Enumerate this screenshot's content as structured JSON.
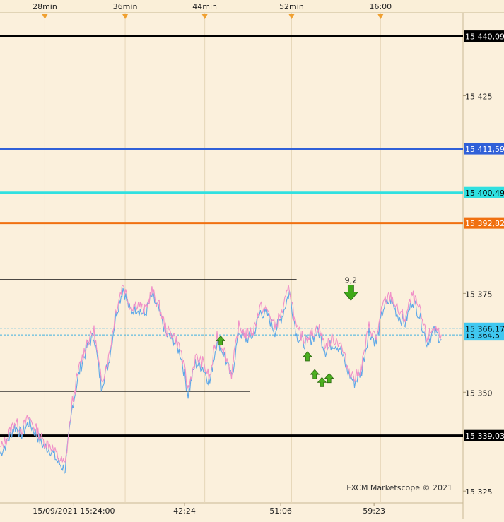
{
  "chart_data": {
    "type": "line",
    "title": "",
    "xlabel": "",
    "ylabel": "",
    "ylim": [
      15322,
      15446
    ],
    "top_time_ticks": [
      "28min",
      "36min",
      "44min",
      "52min",
      "16:00"
    ],
    "bottom_time_ticks": [
      "15/09/2021 15:24:00",
      "42:24",
      "51:06",
      "59:23"
    ],
    "y_ticks": [
      15325,
      15350,
      15375,
      15425
    ],
    "y_tick_labels": [
      "15 325",
      "15 350",
      "15 375",
      "15 425"
    ],
    "levels": [
      {
        "value": 15440.09,
        "label": "15 440,09",
        "color": "#000000",
        "label_bg": "#000000",
        "label_color": "#ffffff"
      },
      {
        "value": 15411.59,
        "label": "15 411,59",
        "color": "#3060d8",
        "label_bg": "#3060d8",
        "label_color": "#ffffff"
      },
      {
        "value": 15400.49,
        "label": "15 400,49",
        "color": "#30e0e0",
        "label_bg": "#30e0e0",
        "label_color": "#000000"
      },
      {
        "value": 15392.82,
        "label": "15 392,82",
        "color": "#f07010",
        "label_bg": "#f07010",
        "label_color": "#ffffff"
      },
      {
        "value": 15339.03,
        "label": "15 339,03",
        "color": "#000000",
        "label_bg": "#000000",
        "label_color": "#ffffff"
      }
    ],
    "current_price": {
      "value": 15366.17,
      "label": "15 366,17",
      "label_bg": "#40c8f0",
      "label_color": "#000000",
      "second_value": 15364.5,
      "second_label": "15 364,5"
    },
    "trend_lines": [
      {
        "y": 15378.5,
        "from_t": 0,
        "to_t": 41
      },
      {
        "y": 15350.2,
        "from_t": 0,
        "to_t": 34.5
      }
    ],
    "price_series": [
      [
        0,
        15335
      ],
      [
        1,
        15338
      ],
      [
        2,
        15342
      ],
      [
        3,
        15340
      ],
      [
        4,
        15343
      ],
      [
        5,
        15340
      ],
      [
        6,
        15337
      ],
      [
        7,
        15336
      ],
      [
        8,
        15333
      ],
      [
        9,
        15331
      ],
      [
        10,
        15347
      ],
      [
        11,
        15356
      ],
      [
        12,
        15362
      ],
      [
        13,
        15365
      ],
      [
        14,
        15352
      ],
      [
        15,
        15358
      ],
      [
        16,
        15370
      ],
      [
        17,
        15377
      ],
      [
        18,
        15371
      ],
      [
        19,
        15372
      ],
      [
        20,
        15370
      ],
      [
        21,
        15375
      ],
      [
        22,
        15371
      ],
      [
        23,
        15365
      ],
      [
        24,
        15364
      ],
      [
        25,
        15360
      ],
      [
        26,
        15350
      ],
      [
        27,
        15358
      ],
      [
        28,
        15357
      ],
      [
        29,
        15353
      ],
      [
        30,
        15364
      ],
      [
        31,
        15360
      ],
      [
        32,
        15354
      ],
      [
        33,
        15366
      ],
      [
        34,
        15364
      ],
      [
        35,
        15365
      ],
      [
        36,
        15371
      ],
      [
        37,
        15370
      ],
      [
        38,
        15366
      ],
      [
        39,
        15370
      ],
      [
        40,
        15376
      ],
      [
        41,
        15365
      ],
      [
        42,
        15363
      ],
      [
        43,
        15364
      ],
      [
        44,
        15366
      ],
      [
        45,
        15361
      ],
      [
        46,
        15363
      ],
      [
        47,
        15362
      ],
      [
        48,
        15356
      ],
      [
        49,
        15353
      ],
      [
        50,
        15356
      ],
      [
        51,
        15366
      ],
      [
        52,
        15363
      ],
      [
        53,
        15372
      ],
      [
        54,
        15374
      ],
      [
        55,
        15370
      ],
      [
        56,
        15368
      ],
      [
        57,
        15374
      ],
      [
        58,
        15370
      ],
      [
        59,
        15363
      ],
      [
        60,
        15366
      ],
      [
        61,
        15364
      ]
    ],
    "signals": [
      {
        "type": "up",
        "t": 30.5,
        "y": 15363
      },
      {
        "type": "up",
        "t": 42.5,
        "y": 15359
      },
      {
        "type": "up",
        "t": 43.5,
        "y": 15354.5
      },
      {
        "type": "up",
        "t": 44.5,
        "y": 15352.5
      },
      {
        "type": "up",
        "t": 45.5,
        "y": 15353.5
      },
      {
        "type": "down",
        "t": 48.5,
        "y": 15375,
        "label": "9,2"
      }
    ],
    "watermark": "FXCM Marketscope © 2021"
  }
}
